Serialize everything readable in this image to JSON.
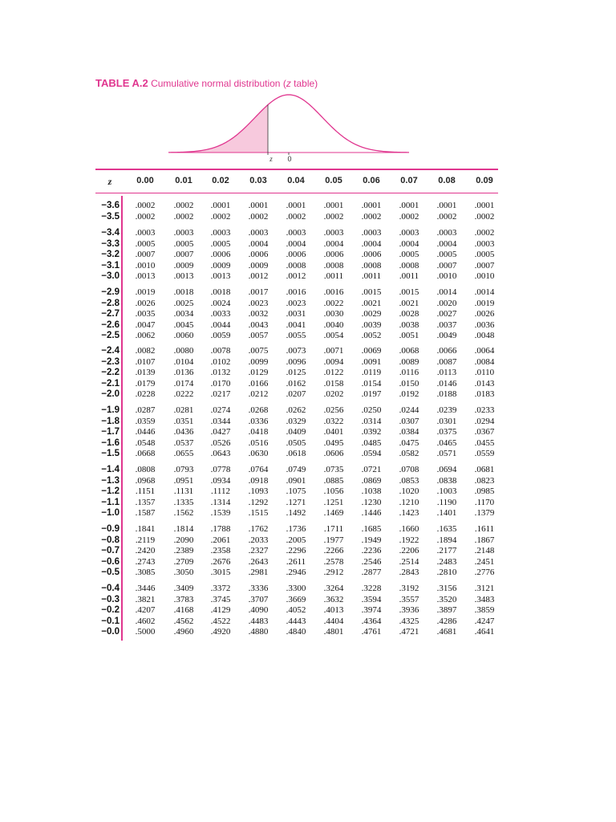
{
  "title": {
    "label": "TABLE A.2",
    "text_before": "Cumulative normal distribution (",
    "var": "z",
    "text_after": " table)"
  },
  "figure": {
    "z_label": "z",
    "zero_label": "0"
  },
  "table": {
    "header_z": "z",
    "columns": [
      "0.00",
      "0.01",
      "0.02",
      "0.03",
      "0.04",
      "0.05",
      "0.06",
      "0.07",
      "0.08",
      "0.09"
    ],
    "groups": [
      [
        [
          "−3.6",
          ".0002",
          ".0002",
          ".0001",
          ".0001",
          ".0001",
          ".0001",
          ".0001",
          ".0001",
          ".0001",
          ".0001"
        ],
        [
          "−3.5",
          ".0002",
          ".0002",
          ".0002",
          ".0002",
          ".0002",
          ".0002",
          ".0002",
          ".0002",
          ".0002",
          ".0002"
        ]
      ],
      [
        [
          "−3.4",
          ".0003",
          ".0003",
          ".0003",
          ".0003",
          ".0003",
          ".0003",
          ".0003",
          ".0003",
          ".0003",
          ".0002"
        ],
        [
          "−3.3",
          ".0005",
          ".0005",
          ".0005",
          ".0004",
          ".0004",
          ".0004",
          ".0004",
          ".0004",
          ".0004",
          ".0003"
        ],
        [
          "−3.2",
          ".0007",
          ".0007",
          ".0006",
          ".0006",
          ".0006",
          ".0006",
          ".0006",
          ".0005",
          ".0005",
          ".0005"
        ],
        [
          "−3.1",
          ".0010",
          ".0009",
          ".0009",
          ".0009",
          ".0008",
          ".0008",
          ".0008",
          ".0008",
          ".0007",
          ".0007"
        ],
        [
          "−3.0",
          ".0013",
          ".0013",
          ".0013",
          ".0012",
          ".0012",
          ".0011",
          ".0011",
          ".0011",
          ".0010",
          ".0010"
        ]
      ],
      [
        [
          "−2.9",
          ".0019",
          ".0018",
          ".0018",
          ".0017",
          ".0016",
          ".0016",
          ".0015",
          ".0015",
          ".0014",
          ".0014"
        ],
        [
          "−2.8",
          ".0026",
          ".0025",
          ".0024",
          ".0023",
          ".0023",
          ".0022",
          ".0021",
          ".0021",
          ".0020",
          ".0019"
        ],
        [
          "−2.7",
          ".0035",
          ".0034",
          ".0033",
          ".0032",
          ".0031",
          ".0030",
          ".0029",
          ".0028",
          ".0027",
          ".0026"
        ],
        [
          "−2.6",
          ".0047",
          ".0045",
          ".0044",
          ".0043",
          ".0041",
          ".0040",
          ".0039",
          ".0038",
          ".0037",
          ".0036"
        ],
        [
          "−2.5",
          ".0062",
          ".0060",
          ".0059",
          ".0057",
          ".0055",
          ".0054",
          ".0052",
          ".0051",
          ".0049",
          ".0048"
        ]
      ],
      [
        [
          "−2.4",
          ".0082",
          ".0080",
          ".0078",
          ".0075",
          ".0073",
          ".0071",
          ".0069",
          ".0068",
          ".0066",
          ".0064"
        ],
        [
          "−2.3",
          ".0107",
          ".0104",
          ".0102",
          ".0099",
          ".0096",
          ".0094",
          ".0091",
          ".0089",
          ".0087",
          ".0084"
        ],
        [
          "−2.2",
          ".0139",
          ".0136",
          ".0132",
          ".0129",
          ".0125",
          ".0122",
          ".0119",
          ".0116",
          ".0113",
          ".0110"
        ],
        [
          "−2.1",
          ".0179",
          ".0174",
          ".0170",
          ".0166",
          ".0162",
          ".0158",
          ".0154",
          ".0150",
          ".0146",
          ".0143"
        ],
        [
          "−2.0",
          ".0228",
          ".0222",
          ".0217",
          ".0212",
          ".0207",
          ".0202",
          ".0197",
          ".0192",
          ".0188",
          ".0183"
        ]
      ],
      [
        [
          "−1.9",
          ".0287",
          ".0281",
          ".0274",
          ".0268",
          ".0262",
          ".0256",
          ".0250",
          ".0244",
          ".0239",
          ".0233"
        ],
        [
          "−1.8",
          ".0359",
          ".0351",
          ".0344",
          ".0336",
          ".0329",
          ".0322",
          ".0314",
          ".0307",
          ".0301",
          ".0294"
        ],
        [
          "−1.7",
          ".0446",
          ".0436",
          ".0427",
          ".0418",
          ".0409",
          ".0401",
          ".0392",
          ".0384",
          ".0375",
          ".0367"
        ],
        [
          "−1.6",
          ".0548",
          ".0537",
          ".0526",
          ".0516",
          ".0505",
          ".0495",
          ".0485",
          ".0475",
          ".0465",
          ".0455"
        ],
        [
          "−1.5",
          ".0668",
          ".0655",
          ".0643",
          ".0630",
          ".0618",
          ".0606",
          ".0594",
          ".0582",
          ".0571",
          ".0559"
        ]
      ],
      [
        [
          "−1.4",
          ".0808",
          ".0793",
          ".0778",
          ".0764",
          ".0749",
          ".0735",
          ".0721",
          ".0708",
          ".0694",
          ".0681"
        ],
        [
          "−1.3",
          ".0968",
          ".0951",
          ".0934",
          ".0918",
          ".0901",
          ".0885",
          ".0869",
          ".0853",
          ".0838",
          ".0823"
        ],
        [
          "−1.2",
          ".1151",
          ".1131",
          ".1112",
          ".1093",
          ".1075",
          ".1056",
          ".1038",
          ".1020",
          ".1003",
          ".0985"
        ],
        [
          "−1.1",
          ".1357",
          ".1335",
          ".1314",
          ".1292",
          ".1271",
          ".1251",
          ".1230",
          ".1210",
          ".1190",
          ".1170"
        ],
        [
          "−1.0",
          ".1587",
          ".1562",
          ".1539",
          ".1515",
          ".1492",
          ".1469",
          ".1446",
          ".1423",
          ".1401",
          ".1379"
        ]
      ],
      [
        [
          "−0.9",
          ".1841",
          ".1814",
          ".1788",
          ".1762",
          ".1736",
          ".1711",
          ".1685",
          ".1660",
          ".1635",
          ".1611"
        ],
        [
          "−0.8",
          ".2119",
          ".2090",
          ".2061",
          ".2033",
          ".2005",
          ".1977",
          ".1949",
          ".1922",
          ".1894",
          ".1867"
        ],
        [
          "−0.7",
          ".2420",
          ".2389",
          ".2358",
          ".2327",
          ".2296",
          ".2266",
          ".2236",
          ".2206",
          ".2177",
          ".2148"
        ],
        [
          "−0.6",
          ".2743",
          ".2709",
          ".2676",
          ".2643",
          ".2611",
          ".2578",
          ".2546",
          ".2514",
          ".2483",
          ".2451"
        ],
        [
          "−0.5",
          ".3085",
          ".3050",
          ".3015",
          ".2981",
          ".2946",
          ".2912",
          ".2877",
          ".2843",
          ".2810",
          ".2776"
        ]
      ],
      [
        [
          "−0.4",
          ".3446",
          ".3409",
          ".3372",
          ".3336",
          ".3300",
          ".3264",
          ".3228",
          ".3192",
          ".3156",
          ".3121"
        ],
        [
          "−0.3",
          ".3821",
          ".3783",
          ".3745",
          ".3707",
          ".3669",
          ".3632",
          ".3594",
          ".3557",
          ".3520",
          ".3483"
        ],
        [
          "−0.2",
          ".4207",
          ".4168",
          ".4129",
          ".4090",
          ".4052",
          ".4013",
          ".3974",
          ".3936",
          ".3897",
          ".3859"
        ],
        [
          "−0.1",
          ".4602",
          ".4562",
          ".4522",
          ".4483",
          ".4443",
          ".4404",
          ".4364",
          ".4325",
          ".4286",
          ".4247"
        ],
        [
          "−0.0",
          ".5000",
          ".4960",
          ".4920",
          ".4880",
          ".4840",
          ".4801",
          ".4761",
          ".4721",
          ".4681",
          ".4641"
        ]
      ]
    ]
  }
}
